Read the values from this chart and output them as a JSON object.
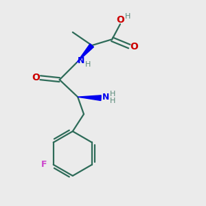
{
  "background_color": "#ebebeb",
  "bond_color": "#2d6b58",
  "N_color": "#0000ee",
  "O_color": "#cc0000",
  "F_color": "#cc44cc",
  "H_color": "#5a8a7a",
  "figsize": [
    3.0,
    3.0
  ],
  "dpi": 100,
  "xlim": [
    0,
    10
  ],
  "ylim": [
    0,
    10
  ]
}
